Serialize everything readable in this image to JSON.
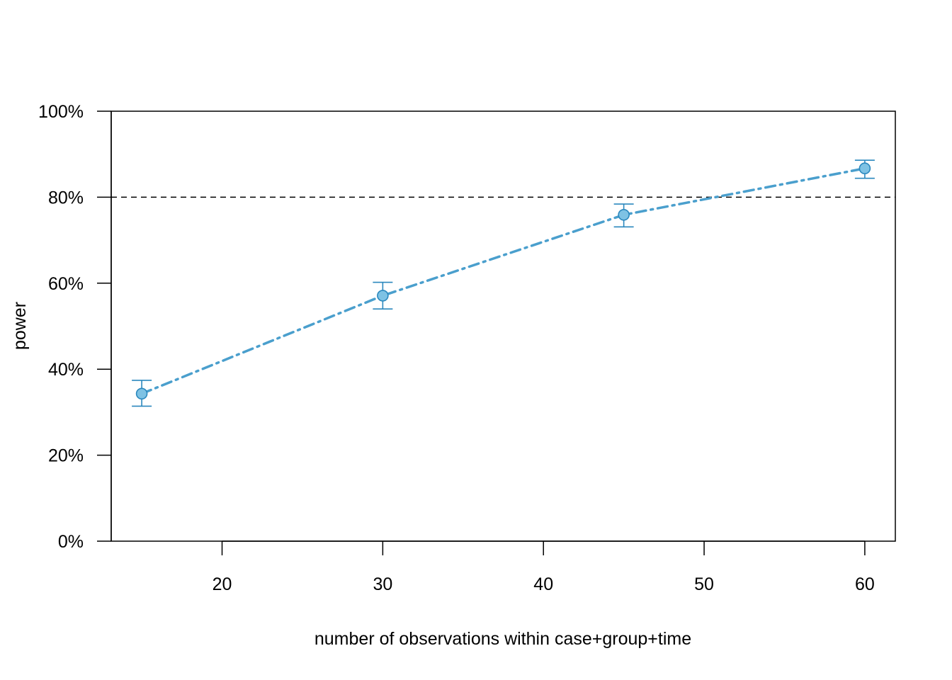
{
  "chart_data": {
    "type": "line",
    "title": "",
    "xlabel": "number of observations within case+group+time",
    "ylabel": "power",
    "x": [
      15,
      30,
      45,
      60
    ],
    "series": [
      {
        "values": [
          34.3,
          57.1,
          75.9,
          86.7
        ],
        "ci_lower": [
          31.4,
          54.0,
          73.1,
          84.4
        ],
        "ci_upper": [
          37.4,
          60.2,
          78.4,
          88.6
        ],
        "line_style": "dot-dash",
        "marker": "circle",
        "line_color": "#4a9fcd",
        "marker_fill": "#7ec2e4",
        "marker_edge": "#2b88be"
      }
    ],
    "reference_line": {
      "y": 80,
      "style": "dashed",
      "color": "#000000"
    },
    "xlim": [
      13.1,
      61.9
    ],
    "ylim": [
      0,
      100
    ],
    "x_ticks": [
      20,
      30,
      40,
      50,
      60
    ],
    "y_ticks": [
      0,
      20,
      40,
      60,
      80,
      100
    ],
    "y_tick_labels": [
      "0%",
      "20%",
      "40%",
      "60%",
      "80%",
      "100%"
    ],
    "grid": false,
    "legend": "none"
  }
}
